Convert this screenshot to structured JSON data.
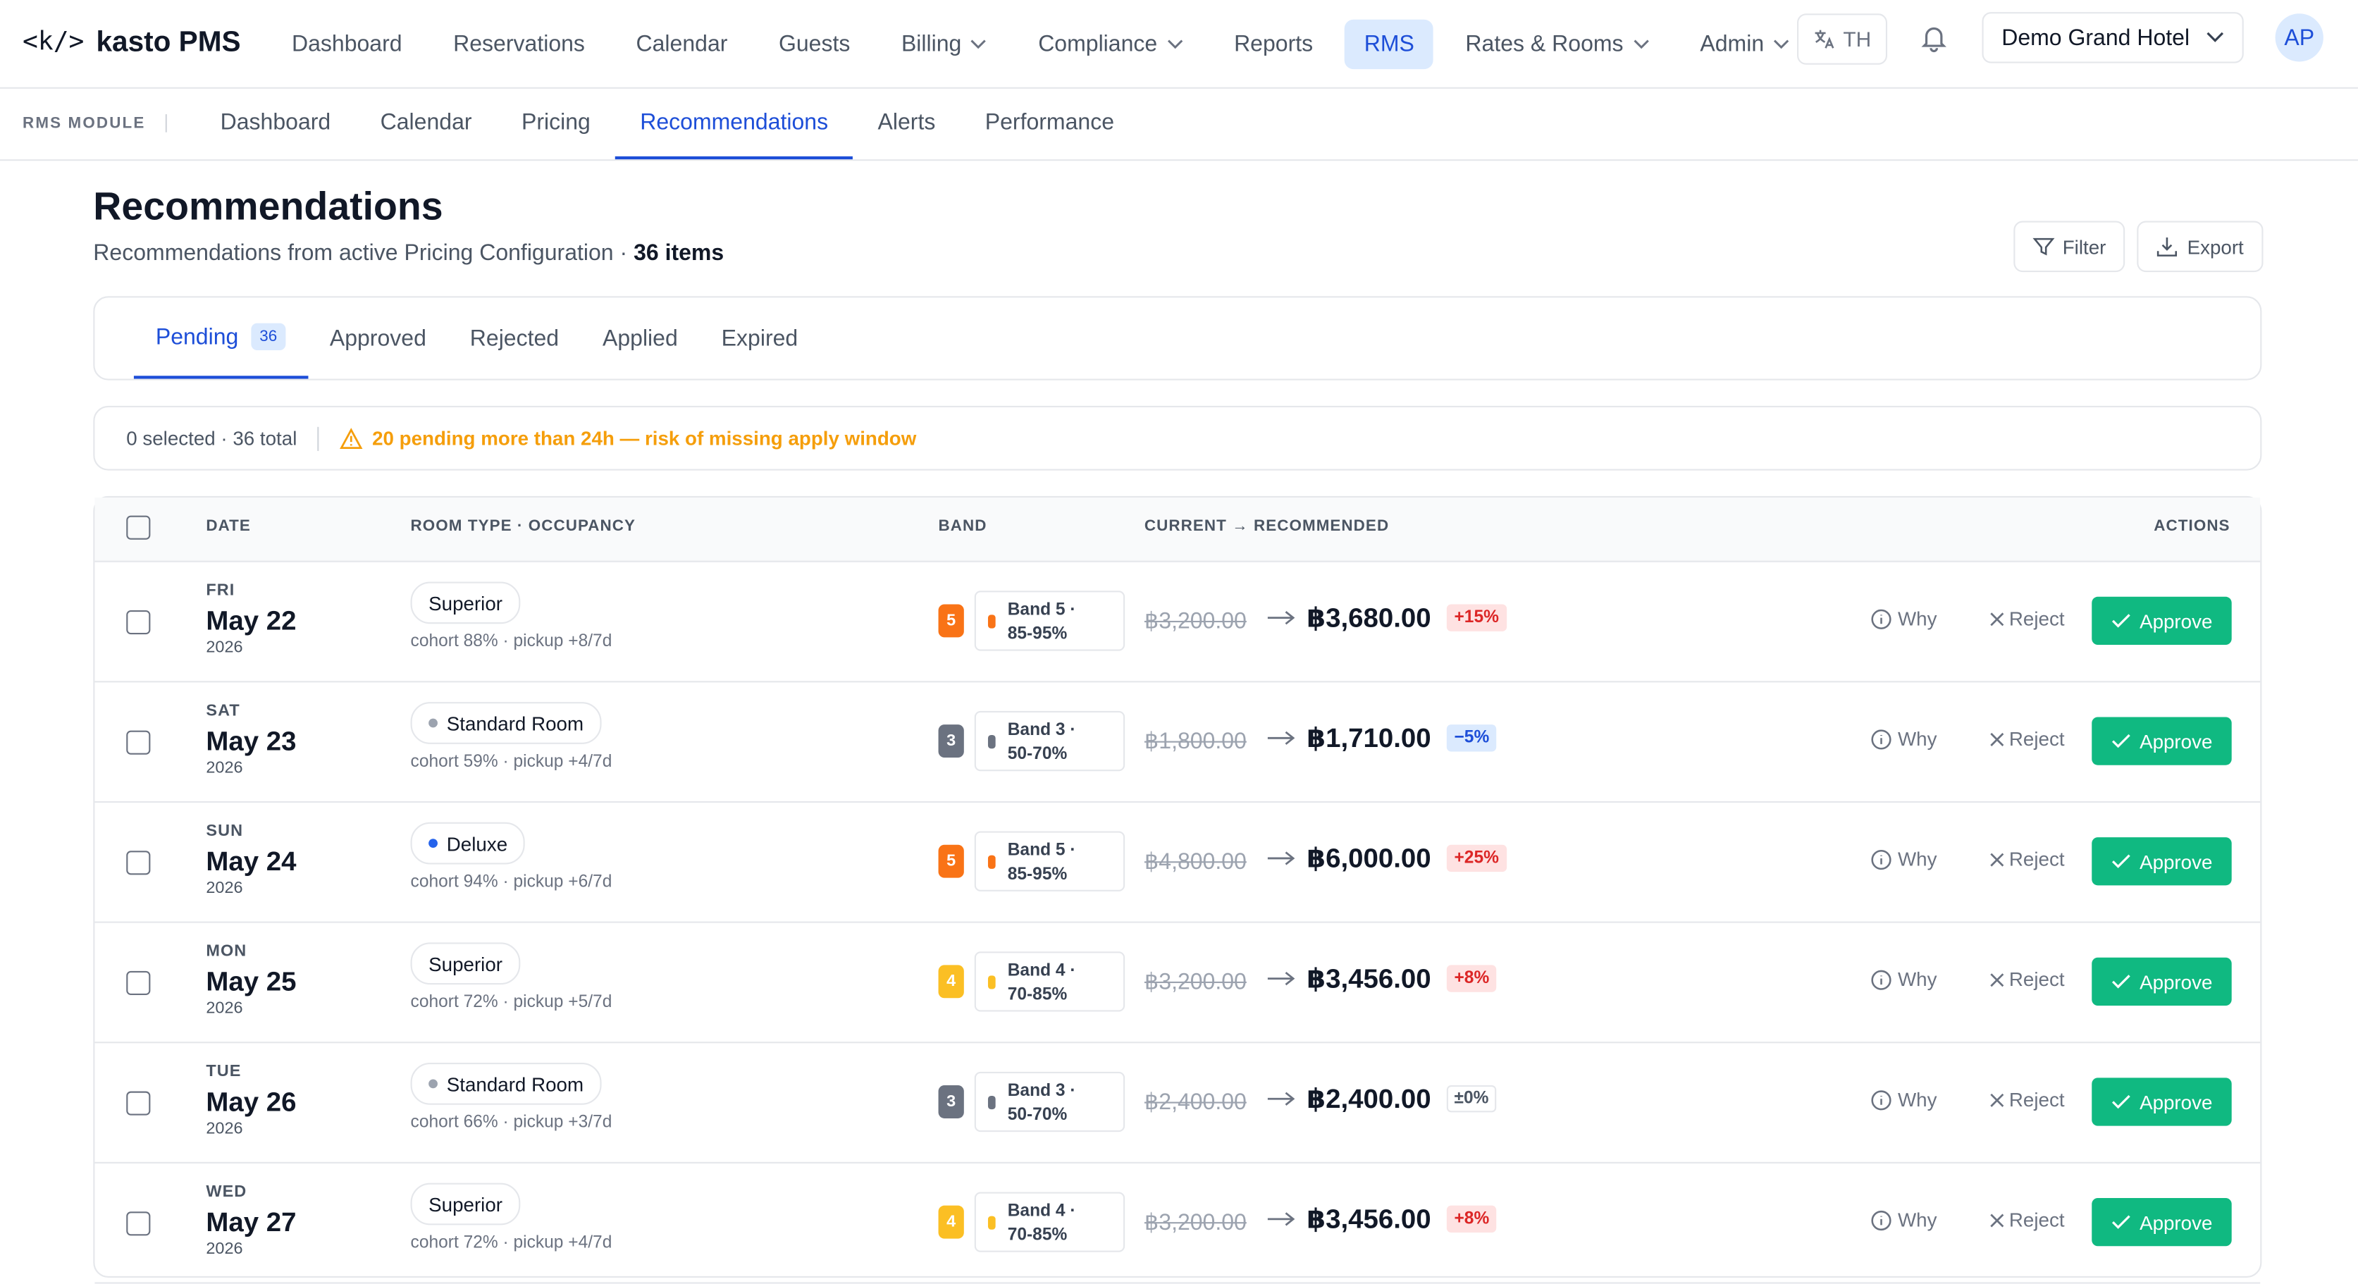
{
  "brand": {
    "logo": "<k/>",
    "name": "kasto PMS"
  },
  "nav": [
    "Dashboard",
    "Reservations",
    "Calendar",
    "Guests",
    "Billing",
    "Compliance",
    "Reports",
    "RMS",
    "Rates & Rooms",
    "Admin"
  ],
  "nav_dropdowns": [
    "Billing",
    "Compliance",
    "Rates & Rooms",
    "Admin"
  ],
  "nav_active": "RMS",
  "language": "TH",
  "hotel": "Demo Grand Hotel",
  "avatar": "AP",
  "subnav": {
    "label": "RMS MODULE",
    "items": [
      "Dashboard",
      "Calendar",
      "Pricing",
      "Recommendations",
      "Alerts",
      "Performance"
    ],
    "active": "Recommendations"
  },
  "header": {
    "title": "Recommendations",
    "subtitle": "Recommendations from active Pricing Configuration ·",
    "count": "36 items",
    "buttons": [
      "Filter",
      "Export"
    ]
  },
  "tabs": {
    "items": [
      "Pending",
      "Approved",
      "Rejected",
      "Applied",
      "Expired"
    ],
    "active": "Pending",
    "badge": "36"
  },
  "status": {
    "selection": "0 selected · 36 total",
    "warning": "20 pending more than 24h — risk of missing apply window"
  },
  "table": {
    "columns": [
      "DATE",
      "ROOM TYPE · OCCUPANCY",
      "BAND",
      "CURRENT → RECOMMENDED",
      "ACTIONS"
    ],
    "row_actions": [
      "Why",
      "Reject",
      "Approve"
    ],
    "rows": [
      {
        "dow": "FRI",
        "date": "May 22",
        "year": "2026",
        "room": "Superior",
        "dot": null,
        "meta": "cohort 88% · pickup +8/7d",
        "band": "5",
        "band_color": "#f97316",
        "band_label": "Band 5 ·",
        "band_range": "85-95%",
        "current": "฿3,200.00",
        "recommended": "฿3,680.00",
        "change": "+15%"
      },
      {
        "dow": "SAT",
        "date": "May 23",
        "year": "2026",
        "room": "Standard Room",
        "dot": "#9ca3af",
        "meta": "cohort 59% · pickup +4/7d",
        "band": "3",
        "band_color": "#6b7280",
        "band_label": "Band 3 ·",
        "band_range": "50-70%",
        "current": "฿1,800.00",
        "recommended": "฿1,710.00",
        "change": "−5%"
      },
      {
        "dow": "SUN",
        "date": "May 24",
        "year": "2026",
        "room": "Deluxe",
        "dot": "#2563eb",
        "meta": "cohort 94% · pickup +6/7d",
        "band": "5",
        "band_color": "#f97316",
        "band_label": "Band 5 ·",
        "band_range": "85-95%",
        "current": "฿4,800.00",
        "recommended": "฿6,000.00",
        "change": "+25%"
      },
      {
        "dow": "MON",
        "date": "May 25",
        "year": "2026",
        "room": "Superior",
        "dot": null,
        "meta": "cohort 72% · pickup +5/7d",
        "band": "4",
        "band_color": "#fbbf24",
        "band_label": "Band 4 ·",
        "band_range": "70-85%",
        "current": "฿3,200.00",
        "recommended": "฿3,456.00",
        "change": "+8%"
      },
      {
        "dow": "TUE",
        "date": "May 26",
        "year": "2026",
        "room": "Standard Room",
        "dot": "#9ca3af",
        "meta": "cohort 66% · pickup +3/7d",
        "band": "3",
        "band_color": "#6b7280",
        "band_label": "Band 3 ·",
        "band_range": "50-70%",
        "current": "฿2,400.00",
        "recommended": "฿2,400.00",
        "change": "±0%"
      },
      {
        "dow": "WED",
        "date": "May 27",
        "year": "2026",
        "room": "Superior",
        "dot": null,
        "meta": "cohort 72% · pickup +4/7d",
        "band": "4",
        "band_color": "#fbbf24",
        "band_label": "Band 4 ·",
        "band_range": "70-85%",
        "current": "฿3,200.00",
        "recommended": "฿3,456.00",
        "change": "+8%"
      }
    ]
  }
}
